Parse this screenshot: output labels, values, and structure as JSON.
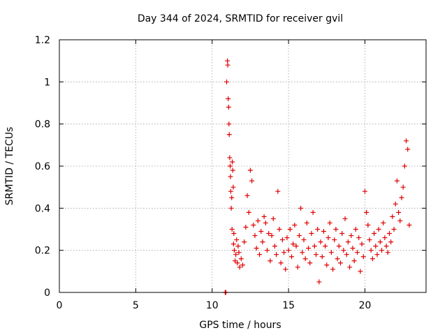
{
  "chart_data": {
    "type": "scatter",
    "title": "Day 344 of 2024, SRMTID for receiver gvil",
    "xlabel": "GPS time / hours",
    "ylabel": "SRMTID / TECUs",
    "xlim": [
      0,
      24
    ],
    "ylim": [
      0,
      1.2
    ],
    "xticks": [
      0,
      5,
      10,
      15,
      20
    ],
    "xtick_labels": [
      "0",
      "5",
      "10",
      "15",
      "20"
    ],
    "yticks": [
      0,
      0.2,
      0.4,
      0.6,
      0.8,
      1.0,
      1.2
    ],
    "ytick_labels": [
      "0",
      "0.2",
      "0.4",
      "0.6",
      "0.8",
      "1",
      "1.2"
    ],
    "grid": true,
    "marker": "+",
    "colors": {
      "points": "#e00000",
      "grid": "#a0a0a0",
      "axes": "#000000"
    },
    "series": [
      {
        "name": "SRMTID",
        "x": [
          10.85,
          10.9,
          10.95,
          11.0,
          11.02,
          11.05,
          11.08,
          11.1,
          11.12,
          11.15,
          11.18,
          11.2,
          11.22,
          11.25,
          11.28,
          11.3,
          11.32,
          11.35,
          11.38,
          11.4,
          11.42,
          11.45,
          11.5,
          11.55,
          11.6,
          11.65,
          11.7,
          11.75,
          11.8,
          11.9,
          12.0,
          12.1,
          12.2,
          12.3,
          12.4,
          12.5,
          12.6,
          12.7,
          12.8,
          12.9,
          13.0,
          13.1,
          13.2,
          13.3,
          13.4,
          13.5,
          13.6,
          13.7,
          13.8,
          13.9,
          14.0,
          14.1,
          14.2,
          14.3,
          14.4,
          14.5,
          14.6,
          14.7,
          14.8,
          14.9,
          15.0,
          15.1,
          15.2,
          15.3,
          15.4,
          15.5,
          15.6,
          15.7,
          15.8,
          15.9,
          16.0,
          16.1,
          16.2,
          16.3,
          16.4,
          16.5,
          16.6,
          16.7,
          16.8,
          16.9,
          17.0,
          17.1,
          17.2,
          17.3,
          17.4,
          17.5,
          17.6,
          17.7,
          17.8,
          17.9,
          18.0,
          18.1,
          18.2,
          18.3,
          18.4,
          18.5,
          18.6,
          18.7,
          18.8,
          18.9,
          19.0,
          19.1,
          19.2,
          19.3,
          19.4,
          19.5,
          19.6,
          19.7,
          19.8,
          19.9,
          20.0,
          20.1,
          20.2,
          20.3,
          20.4,
          20.5,
          20.6,
          20.7,
          20.8,
          20.9,
          21.0,
          21.1,
          21.2,
          21.3,
          21.4,
          21.5,
          21.6,
          21.7,
          21.8,
          21.9,
          22.0,
          22.1,
          22.2,
          22.3,
          22.4,
          22.5,
          22.6,
          22.7,
          22.8,
          22.9
        ],
        "values": [
          0.0,
          0.0,
          1.0,
          1.1,
          1.08,
          0.92,
          0.88,
          0.8,
          0.75,
          0.64,
          0.6,
          0.55,
          0.48,
          0.4,
          0.45,
          0.3,
          0.62,
          0.58,
          0.5,
          0.23,
          0.28,
          0.2,
          0.15,
          0.18,
          0.25,
          0.14,
          0.22,
          0.19,
          0.12,
          0.16,
          0.13,
          0.24,
          0.31,
          0.46,
          0.38,
          0.58,
          0.53,
          0.32,
          0.27,
          0.21,
          0.34,
          0.18,
          0.29,
          0.24,
          0.36,
          0.33,
          0.2,
          0.28,
          0.15,
          0.27,
          0.35,
          0.22,
          0.18,
          0.48,
          0.3,
          0.14,
          0.25,
          0.19,
          0.11,
          0.26,
          0.2,
          0.3,
          0.17,
          0.23,
          0.32,
          0.22,
          0.12,
          0.27,
          0.4,
          0.19,
          0.25,
          0.16,
          0.33,
          0.21,
          0.14,
          0.28,
          0.38,
          0.22,
          0.18,
          0.3,
          0.05,
          0.24,
          0.17,
          0.29,
          0.22,
          0.13,
          0.26,
          0.33,
          0.19,
          0.11,
          0.25,
          0.3,
          0.16,
          0.22,
          0.14,
          0.28,
          0.2,
          0.35,
          0.18,
          0.24,
          0.12,
          0.27,
          0.21,
          0.15,
          0.3,
          0.19,
          0.26,
          0.1,
          0.23,
          0.17,
          0.48,
          0.38,
          0.32,
          0.25,
          0.2,
          0.16,
          0.28,
          0.22,
          0.18,
          0.3,
          0.24,
          0.2,
          0.33,
          0.26,
          0.22,
          0.19,
          0.28,
          0.24,
          0.36,
          0.3,
          0.42,
          0.53,
          0.38,
          0.34,
          0.45,
          0.5,
          0.6,
          0.72,
          0.68,
          0.32
        ]
      }
    ]
  }
}
